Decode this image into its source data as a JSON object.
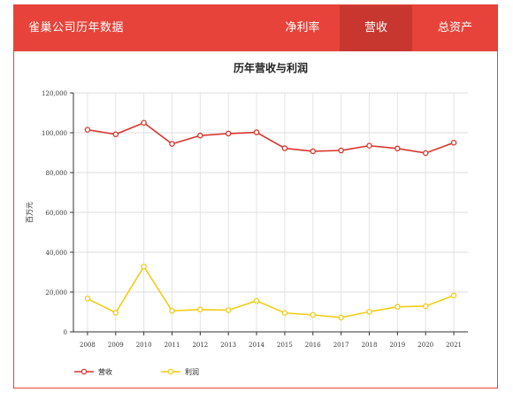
{
  "header": {
    "title": "雀巢公司历年数据",
    "tabs": [
      {
        "label": "净利率",
        "active": false
      },
      {
        "label": "营收",
        "active": true
      },
      {
        "label": "总资产",
        "active": false
      }
    ],
    "accent": "#e8433a",
    "active_tab_color": "#c8372f"
  },
  "chart_data": {
    "type": "line",
    "title": "历年营收与利润",
    "xlabel": "",
    "ylabel": "百万元",
    "categories": [
      "2008",
      "2009",
      "2010",
      "2011",
      "2012",
      "2013",
      "2014",
      "2015",
      "2016",
      "2017",
      "2018",
      "2019",
      "2020",
      "2021"
    ],
    "ylim": [
      0,
      120000
    ],
    "yticks": [
      "0",
      "20,000",
      "40,000",
      "60,000",
      "80,000",
      "100,000",
      "120,000"
    ],
    "grid": true,
    "legend_position": "bottom-left",
    "series": [
      {
        "name": "营收",
        "color": "#d9342b",
        "values": [
          101500,
          99200,
          105000,
          94400,
          98600,
          99600,
          100200,
          92200,
          90700,
          91100,
          93500,
          92100,
          89800,
          95000
        ]
      },
      {
        "name": "利润",
        "color": "#f2cc16",
        "values": [
          16700,
          9600,
          32800,
          10600,
          11200,
          10900,
          15600,
          9500,
          8500,
          7200,
          10100,
          12600,
          12900,
          18300
        ]
      }
    ]
  }
}
